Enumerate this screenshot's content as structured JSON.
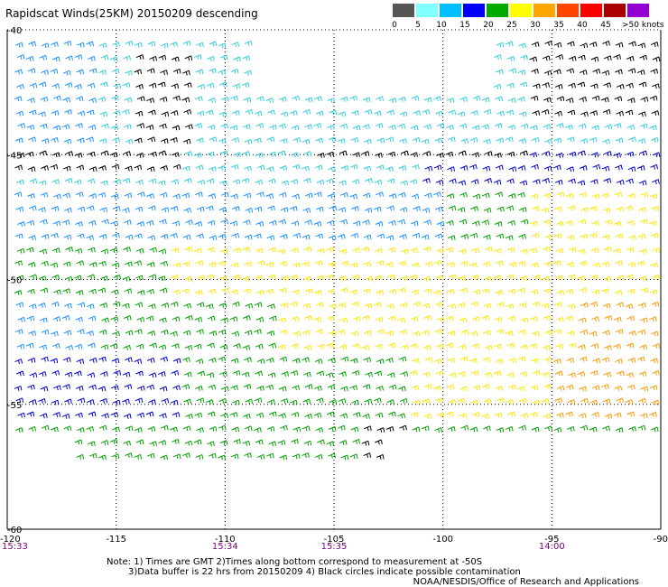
{
  "title": "Rapidscat Winds(25KM) 20150209 descending",
  "legend": {
    "labels": [
      "0",
      "5",
      "10",
      "15",
      "20",
      "25",
      "30",
      "35",
      "40",
      "45",
      ">50 knots"
    ],
    "colors": [
      "#555555",
      "#7fffff",
      "#00bfff",
      "#0000ff",
      "#00aa00",
      "#ffff00",
      "#ffa500",
      "#ff4500",
      "#ff0000",
      "#aa0000",
      "#9400d3"
    ]
  },
  "lat_labels": [
    "-40",
    "-45",
    "-50",
    "-55",
    "-60"
  ],
  "lon_labels": [
    "-120",
    "-115",
    "-110",
    "-105",
    "-100",
    "-95",
    "-90"
  ],
  "time_labels": [
    "15:33",
    "15:34",
    "15:35",
    "14:00"
  ],
  "notes": {
    "line1": "Note: 1) Times are GMT 2)Times along bottom correspond to measurement at -50S",
    "line2": "3)Data buffer is 22 hrs from 20150209 4) Black circles indicate possible contamination"
  },
  "credit": "NOAA/NESDIS/Office of Research and Applications",
  "wind_band_colors": {
    "calm": "#000000",
    "light": "#33ccdd",
    "moderate": "#1e90ff",
    "fresh": "#0000cc",
    "strong": "#00a000",
    "gale": "#ffe600",
    "storm": "#ff9900",
    "violent": "#cc5500"
  }
}
